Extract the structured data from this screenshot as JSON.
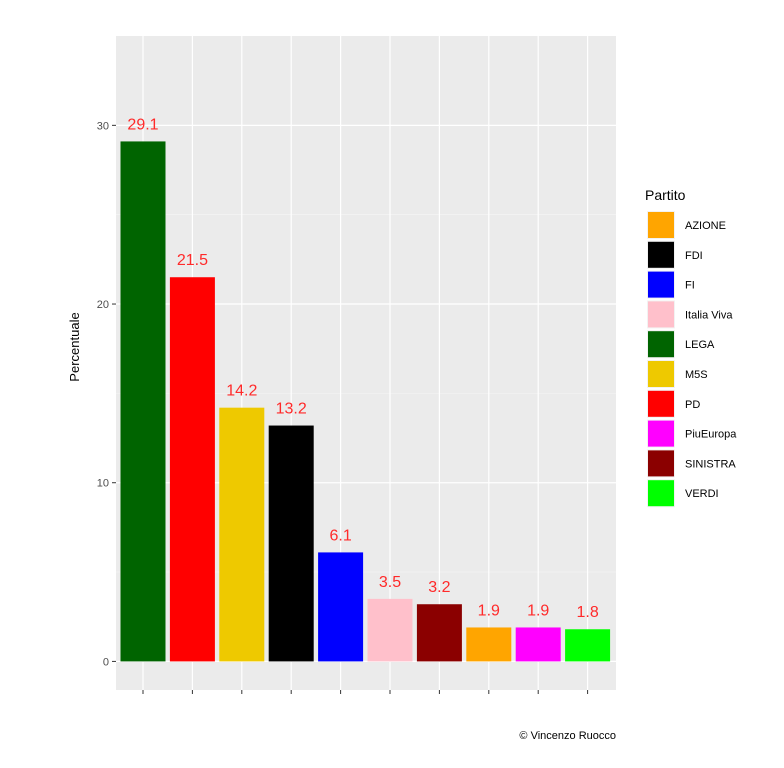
{
  "chart_data": {
    "type": "bar",
    "categories": [
      "LEGA",
      "PD",
      "M5S",
      "FDI",
      "FI",
      "Italia Viva",
      "SINISTRA",
      "AZIONE",
      "PiuEuropa",
      "VERDI"
    ],
    "values": [
      29.1,
      21.5,
      14.2,
      13.2,
      6.1,
      3.5,
      3.2,
      1.9,
      1.9,
      1.8
    ],
    "data_labels": [
      "29.1",
      "21.5",
      "14.2",
      "13.2",
      "6.1",
      "3.5",
      "3.2",
      "1.9",
      "1.9",
      "1.8"
    ],
    "bar_colors": [
      "#006400",
      "#ff0000",
      "#eec900",
      "#000000",
      "#0000ff",
      "#ffc0cb",
      "#8b0000",
      "#ffa500",
      "#ff00ff",
      "#00ff00"
    ],
    "ylabel": "Percentuale",
    "ylim": [
      -1.6,
      35
    ],
    "yticks": [
      0,
      10,
      20,
      30
    ],
    "grid": true,
    "legend": {
      "title": "Partito",
      "position": "right",
      "entries": [
        {
          "label": "AZIONE",
          "color": "#ffa500"
        },
        {
          "label": "FDI",
          "color": "#000000"
        },
        {
          "label": "FI",
          "color": "#0000ff"
        },
        {
          "label": "Italia Viva",
          "color": "#ffc0cb"
        },
        {
          "label": "LEGA",
          "color": "#006400"
        },
        {
          "label": "M5S",
          "color": "#eec900"
        },
        {
          "label": "PD",
          "color": "#ff0000"
        },
        {
          "label": "PiuEuropa",
          "color": "#ff00ff"
        },
        {
          "label": "SINISTRA",
          "color": "#8b0000"
        },
        {
          "label": "VERDI",
          "color": "#00ff00"
        }
      ]
    },
    "caption": "© Vincenzo Ruocco",
    "panel_background": "#ebebeb"
  }
}
